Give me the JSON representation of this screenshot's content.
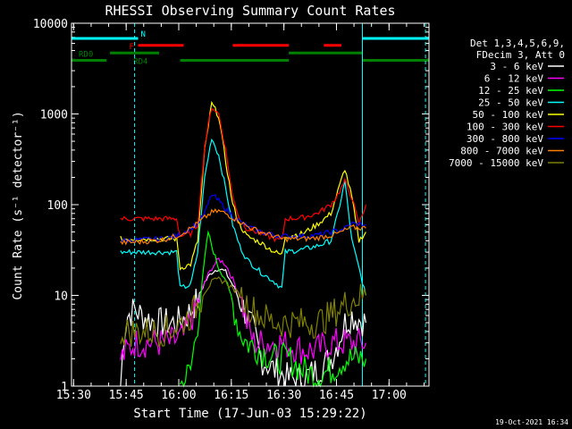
{
  "chart_data": {
    "type": "line",
    "title": "RHESSI Observing Summary Count Rates",
    "xlabel": "Start Time (17-Jun-03 15:29:22)",
    "ylabel": "Count Rate (s⁻¹ detector⁻¹)",
    "yscale": "log",
    "xlim_minutes": [
      0,
      102
    ],
    "ylim": [
      1,
      10000
    ],
    "x_ticks": [
      "15:30",
      "15:45",
      "16:00",
      "16:15",
      "16:30",
      "16:45",
      "17:00"
    ],
    "y_ticks": [
      "1",
      "10",
      "100",
      "1000",
      "10000"
    ],
    "footer_date": "19-Oct-2021 16:34",
    "legend_header": [
      "Det 1,3,4,5,6,9,",
      "FDecim 3, Att 0"
    ],
    "legend_placement": "right",
    "grid": false,
    "series": [
      {
        "name": "3 - 6 keV",
        "color": "#ffffff",
        "points": [
          [
            14,
            1
          ],
          [
            15,
            4
          ],
          [
            16,
            6
          ],
          [
            18,
            7
          ],
          [
            20,
            6
          ],
          [
            24,
            5
          ],
          [
            28,
            5
          ],
          [
            30,
            5
          ],
          [
            33,
            6
          ],
          [
            36,
            9
          ],
          [
            38,
            14
          ],
          [
            40,
            18
          ],
          [
            42,
            20
          ],
          [
            44,
            18
          ],
          [
            46,
            13
          ],
          [
            48,
            9
          ],
          [
            50,
            6
          ],
          [
            52,
            4
          ],
          [
            54,
            2
          ],
          [
            58,
            1.5
          ],
          [
            62,
            1.2
          ],
          [
            66,
            1.2
          ],
          [
            70,
            1.5
          ],
          [
            74,
            2
          ],
          [
            76,
            3
          ],
          [
            78,
            5
          ],
          [
            80,
            6
          ],
          [
            84,
            5
          ]
        ]
      },
      {
        "name": "6 - 12 keV",
        "color": "#ff00ff",
        "points": [
          [
            14,
            2
          ],
          [
            18,
            3
          ],
          [
            22,
            3
          ],
          [
            28,
            3
          ],
          [
            32,
            3.5
          ],
          [
            36,
            8
          ],
          [
            38,
            14
          ],
          [
            40,
            20
          ],
          [
            42,
            25
          ],
          [
            44,
            22
          ],
          [
            46,
            15
          ],
          [
            48,
            10
          ],
          [
            50,
            5
          ],
          [
            52,
            3
          ],
          [
            56,
            3
          ],
          [
            60,
            3
          ],
          [
            66,
            2.5
          ],
          [
            70,
            2.5
          ],
          [
            74,
            3
          ],
          [
            78,
            3
          ],
          [
            80,
            3
          ],
          [
            84,
            3
          ]
        ]
      },
      {
        "name": "12 - 25 keV",
        "color": "#00ff00",
        "points": [
          [
            31,
            1
          ],
          [
            34,
            1.5
          ],
          [
            36,
            5
          ],
          [
            38,
            25
          ],
          [
            39,
            50
          ],
          [
            40,
            35
          ],
          [
            42,
            20
          ],
          [
            44,
            15
          ],
          [
            46,
            8
          ],
          [
            48,
            4
          ],
          [
            50,
            3
          ],
          [
            54,
            2.5
          ],
          [
            58,
            2
          ],
          [
            62,
            2
          ],
          [
            66,
            1.5
          ],
          [
            70,
            1.3
          ],
          [
            74,
            1.5
          ],
          [
            78,
            2
          ],
          [
            84,
            2
          ]
        ]
      },
      {
        "name": "25 - 50 keV",
        "color": "#00ffff",
        "points": [
          [
            14,
            30
          ],
          [
            20,
            30
          ],
          [
            26,
            30
          ],
          [
            30,
            30
          ],
          [
            31,
            12
          ],
          [
            34,
            13
          ],
          [
            36,
            30
          ],
          [
            38,
            200
          ],
          [
            40,
            550
          ],
          [
            42,
            350
          ],
          [
            44,
            150
          ],
          [
            46,
            60
          ],
          [
            48,
            35
          ],
          [
            50,
            25
          ],
          [
            54,
            18
          ],
          [
            58,
            14
          ],
          [
            60,
            12
          ],
          [
            61,
            30
          ],
          [
            66,
            32
          ],
          [
            70,
            35
          ],
          [
            74,
            40
          ],
          [
            76,
            80
          ],
          [
            78,
            180
          ],
          [
            80,
            40
          ],
          [
            82,
            20
          ],
          [
            84,
            10
          ]
        ]
      },
      {
        "name": "50 - 100 keV",
        "color": "#ffff00",
        "points": [
          [
            14,
            42
          ],
          [
            20,
            42
          ],
          [
            26,
            42
          ],
          [
            30,
            42
          ],
          [
            31,
            20
          ],
          [
            34,
            22
          ],
          [
            36,
            40
          ],
          [
            38,
            400
          ],
          [
            40,
            1300
          ],
          [
            42,
            950
          ],
          [
            44,
            300
          ],
          [
            46,
            100
          ],
          [
            48,
            60
          ],
          [
            50,
            45
          ],
          [
            54,
            38
          ],
          [
            58,
            30
          ],
          [
            60,
            28
          ],
          [
            61,
            45
          ],
          [
            66,
            48
          ],
          [
            70,
            60
          ],
          [
            74,
            80
          ],
          [
            76,
            140
          ],
          [
            78,
            250
          ],
          [
            80,
            120
          ],
          [
            82,
            40
          ],
          [
            84,
            50
          ]
        ]
      },
      {
        "name": "100 - 300 keV",
        "color": "#ff0000",
        "points": [
          [
            14,
            70
          ],
          [
            20,
            70
          ],
          [
            26,
            70
          ],
          [
            30,
            70
          ],
          [
            31,
            45
          ],
          [
            34,
            48
          ],
          [
            36,
            60
          ],
          [
            38,
            450
          ],
          [
            40,
            1200
          ],
          [
            42,
            1000
          ],
          [
            44,
            400
          ],
          [
            46,
            120
          ],
          [
            48,
            70
          ],
          [
            50,
            55
          ],
          [
            54,
            48
          ],
          [
            58,
            42
          ],
          [
            60,
            40
          ],
          [
            61,
            70
          ],
          [
            66,
            72
          ],
          [
            70,
            80
          ],
          [
            74,
            100
          ],
          [
            76,
            130
          ],
          [
            78,
            180
          ],
          [
            80,
            120
          ],
          [
            82,
            60
          ],
          [
            84,
            100
          ]
        ]
      },
      {
        "name": "300 - 800 keV",
        "color": "#0000ff",
        "points": [
          [
            14,
            40
          ],
          [
            20,
            41
          ],
          [
            26,
            42
          ],
          [
            30,
            45
          ],
          [
            34,
            55
          ],
          [
            36,
            62
          ],
          [
            38,
            80
          ],
          [
            40,
            130
          ],
          [
            42,
            110
          ],
          [
            44,
            90
          ],
          [
            46,
            75
          ],
          [
            48,
            65
          ],
          [
            50,
            58
          ],
          [
            54,
            50
          ],
          [
            58,
            46
          ],
          [
            60,
            45
          ],
          [
            66,
            45
          ],
          [
            70,
            46
          ],
          [
            74,
            50
          ],
          [
            76,
            52
          ],
          [
            78,
            55
          ],
          [
            80,
            62
          ],
          [
            84,
            60
          ]
        ]
      },
      {
        "name": "800 - 7000 keV",
        "color": "#ff8000",
        "points": [
          [
            14,
            38
          ],
          [
            20,
            39
          ],
          [
            26,
            41
          ],
          [
            30,
            45
          ],
          [
            34,
            55
          ],
          [
            36,
            62
          ],
          [
            38,
            72
          ],
          [
            40,
            82
          ],
          [
            42,
            85
          ],
          [
            44,
            80
          ],
          [
            46,
            72
          ],
          [
            48,
            65
          ],
          [
            50,
            58
          ],
          [
            54,
            50
          ],
          [
            58,
            45
          ],
          [
            60,
            42
          ],
          [
            66,
            42
          ],
          [
            70,
            43
          ],
          [
            74,
            46
          ],
          [
            76,
            48
          ],
          [
            78,
            52
          ],
          [
            80,
            56
          ],
          [
            84,
            55
          ]
        ]
      },
      {
        "name": "7000 - 15000 keV",
        "color": "#808000",
        "points": [
          [
            14,
            4
          ],
          [
            20,
            4
          ],
          [
            26,
            4
          ],
          [
            30,
            4.5
          ],
          [
            34,
            6
          ],
          [
            36,
            8
          ],
          [
            38,
            11
          ],
          [
            40,
            14
          ],
          [
            42,
            15
          ],
          [
            44,
            14
          ],
          [
            46,
            12
          ],
          [
            48,
            10
          ],
          [
            50,
            8
          ],
          [
            54,
            6
          ],
          [
            58,
            5
          ],
          [
            60,
            5
          ],
          [
            66,
            5
          ],
          [
            70,
            5
          ],
          [
            74,
            6
          ],
          [
            76,
            7
          ],
          [
            78,
            8
          ],
          [
            80,
            9
          ],
          [
            84,
            10
          ]
        ]
      }
    ],
    "annotations": {
      "flags": [
        {
          "name": "N",
          "color": "#00ffff",
          "segments": [
            [
              0,
              19
            ],
            [
              83,
              102
            ]
          ],
          "value": 6800
        },
        {
          "name": "F",
          "color": "#ff0000",
          "segments": [
            [
              19,
              32
            ],
            [
              46,
              62
            ],
            [
              72,
              77
            ]
          ],
          "value": 5700
        },
        {
          "name": "RD0",
          "color": "#008000",
          "segments": [
            [
              11,
              25
            ],
            [
              62,
              83
            ]
          ],
          "value": 4700
        },
        {
          "name": "RD4",
          "color": "#008000",
          "segments": [
            [
              0,
              10
            ],
            [
              31,
              62
            ],
            [
              83,
              102
            ]
          ],
          "value": 3900
        }
      ],
      "vlines": [
        {
          "name": "solid",
          "color": "#00ffff",
          "x": [
            0,
            83
          ]
        },
        {
          "name": "dashed",
          "color": "#00ffff",
          "x": [
            18,
            101
          ]
        }
      ]
    }
  }
}
